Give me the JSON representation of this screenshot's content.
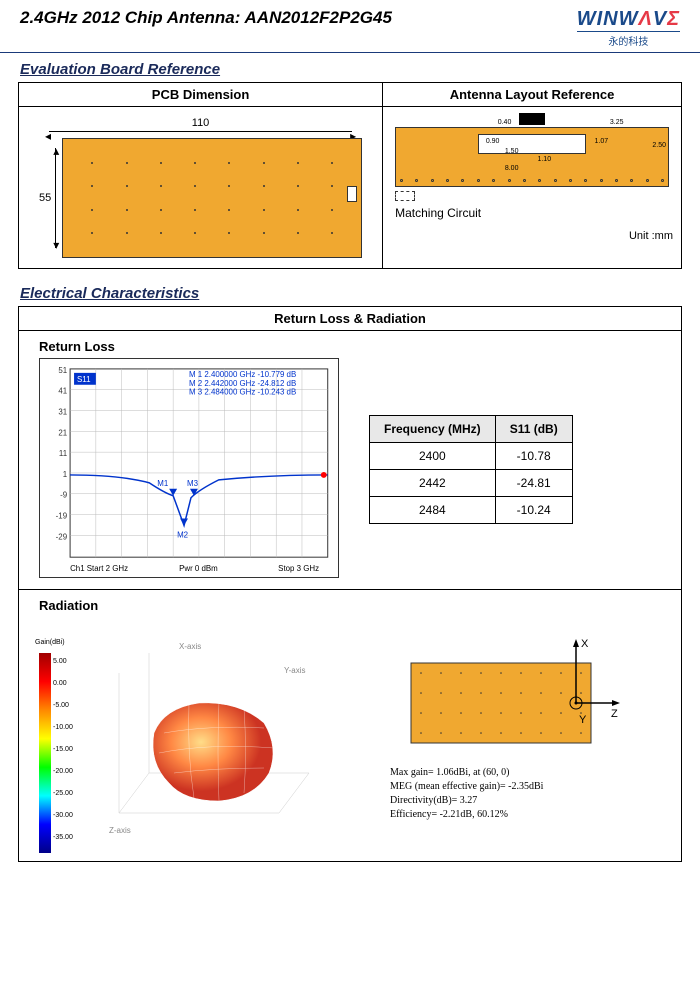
{
  "header": {
    "title": "2.4GHz 2012 Chip Antenna: AAN2012F2P2G45",
    "logo_main": "WINWAVE",
    "logo_sub": "永的科技"
  },
  "section1": {
    "title": "Evaluation Board Reference",
    "col1_header": "PCB Dimension",
    "col2_header": "Antenna Layout Reference",
    "pcb_width": "110",
    "pcb_height": "55",
    "matching_label": "Matching Circuit",
    "unit_label": "Unit :mm",
    "layout_dims": {
      "d1": "0.40",
      "d2": "0.90",
      "d3": "1.50",
      "d4": "3.25",
      "d5": "1.07",
      "d6": "2.50",
      "d7": "1.10",
      "d8": "8.00"
    }
  },
  "section2": {
    "title": "Electrical Characteristics",
    "panel_header": "Return Loss & Radiation",
    "return_loss": {
      "title": "Return Loss",
      "s11_badge": "S11",
      "markers": [
        "M 1 2.400000 GHz -10.779 dB",
        "M 2 2.442000 GHz -24.812 dB",
        "M 3 2.484000 GHz -10.243 dB"
      ],
      "m_labels": [
        "M1",
        "M2",
        "M3"
      ],
      "y_ticks": [
        "51",
        "41",
        "31",
        "21",
        "11",
        "1",
        "-9",
        "-19",
        "-29"
      ],
      "x_left": "Ch1   Start  2 GHz",
      "x_mid": "Pwr  0 dBm",
      "x_right": "Stop  3 GHz",
      "chart": {
        "grid_color": "#bbbbbb",
        "line_color": "#0033cc",
        "marker_color": "#0033cc",
        "end_marker_color": "#ff0000",
        "bg": "#ffffff"
      },
      "table": {
        "headers": [
          "Frequency (MHz)",
          "S11 (dB)"
        ],
        "rows": [
          [
            "2400",
            "-10.78"
          ],
          [
            "2442",
            "-24.81"
          ],
          [
            "2484",
            "-10.24"
          ]
        ]
      }
    },
    "radiation": {
      "title": "Radiation",
      "gain_label": "Gain(dBi)",
      "cb_values": [
        "5.00",
        "0.00",
        "-5.00",
        "-10.00",
        "-15.00",
        "-20.00",
        "-25.00",
        "-30.00",
        "-35.00"
      ],
      "axes": {
        "x": "X",
        "y": "Y",
        "z": "Z"
      },
      "axis3d": {
        "x": "X-axis",
        "y": "Y-axis",
        "z": "Z-axis"
      },
      "stats": [
        "Max gain= 1.06dBi, at (60, 0)",
        "MEG (mean effective gain)= -2.35dBi",
        "Directivity(dB)= 3.27",
        "Efficiency= -2.21dB, 60.12%"
      ]
    }
  },
  "colors": {
    "pcb": "#f0a830",
    "accent": "#1a3a7a"
  }
}
